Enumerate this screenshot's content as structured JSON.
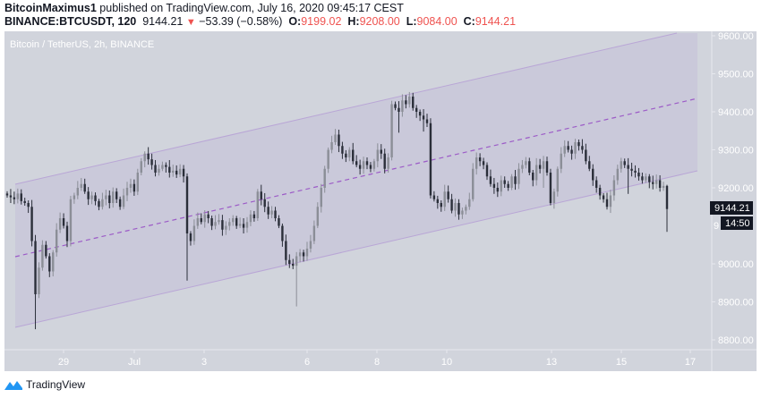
{
  "header": {
    "author": "BitcoinMaximus1",
    "published_text": " published on TradingView.com, July 16, 2020 09:45:17 CEST",
    "symbol": "BINANCE:BTCUSDT, 120",
    "last_price": "9144.21",
    "change_arrow": "▼",
    "change": "−53.39 (−0.58%)",
    "open_label": "O:",
    "open": "9199.02",
    "high_label": "H:",
    "high": "9208.00",
    "low_label": "L:",
    "low": "9084.00",
    "close_label": "C:",
    "close": "9144.21"
  },
  "chart": {
    "legend": "Bitcoin / TetherUS, 2h, BINANCE",
    "price_tag": "9144.21",
    "countdown": "14:50",
    "colors": {
      "background": "#d1d4dc",
      "channel_fill": "#cbcad8",
      "channel_line": "#b39ddb",
      "channel_mid": "#9c5bc7",
      "up_candle": "#8b8e97",
      "down_candle": "#2a2e39",
      "axis_text": "#ffffff",
      "tag_bg": "#131722"
    }
  },
  "footer": {
    "brand": "TradingView"
  },
  "chart_data": {
    "type": "candlestick",
    "title": "Bitcoin / TetherUS, 2h, BINANCE",
    "xlabel": "",
    "ylabel": "",
    "x_tick_labels": [
      "29",
      "Jul",
      "3",
      "6",
      "8",
      "10",
      "13",
      "15",
      "17"
    ],
    "y_tick_labels": [
      "9600.00",
      "9500.00",
      "9400.00",
      "9300.00",
      "9200.00",
      "9000.00",
      "8900.00",
      "8800.00"
    ],
    "ylim": [
      8780,
      9610
    ],
    "grid": false,
    "last_price": 9144.21,
    "channel": {
      "type": "parallel_channel",
      "upper": {
        "start": [
          0,
          9210
        ],
        "end": [
          1,
          9600
        ]
      },
      "middle": {
        "start": [
          0,
          9020
        ],
        "end": [
          1,
          9430
        ]
      },
      "lower": {
        "start": [
          0,
          8830
        ],
        "end": [
          1,
          9240
        ]
      }
    },
    "series": [
      {
        "name": "close",
        "values": [
          9180,
          9175,
          9170,
          9185,
          9165,
          9160,
          9150,
          9060,
          8920,
          8990,
          9050,
          9020,
          8980,
          9030,
          9090,
          9120,
          9100,
          9060,
          9170,
          9180,
          9200,
          9210,
          9190,
          9170,
          9180,
          9165,
          9150,
          9170,
          9180,
          9160,
          9190,
          9170,
          9150,
          9180,
          9200,
          9210,
          9190,
          9240,
          9270,
          9290,
          9275,
          9260,
          9240,
          9250,
          9260,
          9255,
          9240,
          9245,
          9235,
          9250,
          9230,
          9080,
          9060,
          9100,
          9120,
          9110,
          9130,
          9120,
          9100,
          9110,
          9115,
          9090,
          9100,
          9110,
          9120,
          9100,
          9105,
          9095,
          9110,
          9130,
          9120,
          9190,
          9170,
          9150,
          9130,
          9140,
          9120,
          9100,
          9060,
          9010,
          9000,
          8995,
          9020,
          9030,
          9020,
          9040,
          9060,
          9100,
          9150,
          9200,
          9250,
          9300,
          9320,
          9340,
          9310,
          9290,
          9280,
          9300,
          9270,
          9260,
          9250,
          9270,
          9260,
          9250,
          9270,
          9300,
          9290,
          9250,
          9280,
          9420,
          9410,
          9400,
          9430,
          9420,
          9440,
          9410,
          9400,
          9390,
          9380,
          9370,
          9180,
          9170,
          9160,
          9150,
          9190,
          9170,
          9140,
          9160,
          9130,
          9140,
          9150,
          9170,
          9250,
          9280,
          9270,
          9260,
          9230,
          9210,
          9200,
          9190,
          9220,
          9210,
          9200,
          9230,
          9210,
          9250,
          9260,
          9270,
          9240,
          9220,
          9260,
          9250,
          9270,
          9240,
          9160,
          9190,
          9250,
          9290,
          9310,
          9300,
          9290,
          9320,
          9310,
          9300,
          9270,
          9250,
          9220,
          9200,
          9180,
          9170,
          9150,
          9180,
          9220,
          9250,
          9270,
          9260,
          9250,
          9245,
          9240,
          9230,
          9220,
          9230,
          9215,
          9210,
          9220,
          9200,
          9205,
          9144.21
        ]
      }
    ]
  }
}
